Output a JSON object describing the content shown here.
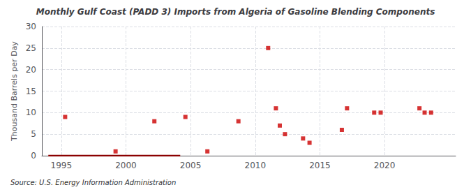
{
  "chart_data": {
    "type": "scatter",
    "title": "Monthly Gulf Coast (PADD 3) Imports from Algeria of Gasoline Blending Components",
    "ylabel": "Thousand Barrels per Day",
    "source": "Source: U.S. Energy Information Administration",
    "xlim": [
      1993.5,
      2025.5
    ],
    "xticks": [
      1995,
      2000,
      2005,
      2010,
      2015,
      2020
    ],
    "ylim": [
      0,
      30
    ],
    "yticks": [
      0,
      5,
      10,
      15,
      20,
      25,
      30
    ],
    "grid": true,
    "series": [
      {
        "type": "line",
        "color": "#8b0000",
        "x": [
          1994.0,
          2004.2
        ],
        "values": [
          0,
          0
        ]
      },
      {
        "type": "scatter",
        "color": "#cc0000",
        "marker": "square",
        "x": [
          1995.3,
          1999.2,
          2002.2,
          2004.6,
          2006.3,
          2008.7,
          2011.0,
          2011.6,
          2011.9,
          2012.3,
          2013.7,
          2014.2,
          2016.7,
          2017.1,
          2019.2,
          2019.7,
          2022.7,
          2023.1,
          2023.6
        ],
        "values": [
          9,
          1,
          8,
          9,
          1,
          8,
          25,
          11,
          7,
          5,
          4,
          3,
          6,
          11,
          10,
          10,
          11,
          10,
          10
        ]
      }
    ]
  }
}
